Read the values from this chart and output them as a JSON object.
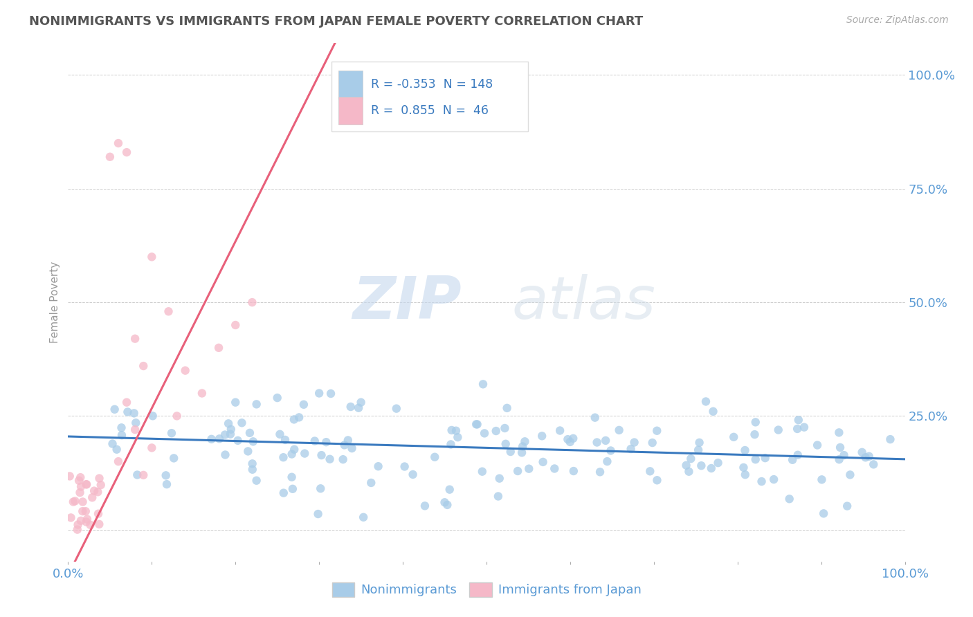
{
  "title": "NONIMMIGRANTS VS IMMIGRANTS FROM JAPAN FEMALE POVERTY CORRELATION CHART",
  "source": "Source: ZipAtlas.com",
  "ylabel": "Female Poverty",
  "blue_R": -0.353,
  "blue_N": 148,
  "pink_R": 0.855,
  "pink_N": 46,
  "blue_color": "#a8cce8",
  "pink_color": "#f5b8c8",
  "blue_line_color": "#3a7abf",
  "pink_line_color": "#e8607a",
  "watermark_zip": "ZIP",
  "watermark_atlas": "atlas",
  "legend_label_blue": "Nonimmigrants",
  "legend_label_pink": "Immigrants from Japan",
  "background_color": "#ffffff",
  "grid_color": "#cccccc",
  "title_color": "#555555",
  "tick_label_color": "#5b9bd5",
  "right_tick_labels": [
    "",
    "25.0%",
    "50.0%",
    "75.0%",
    "100.0%"
  ],
  "x_tick_labels_bottom": [
    "0.0%",
    "",
    "",
    "",
    "",
    "",
    "",
    "",
    "",
    "100.0%"
  ]
}
